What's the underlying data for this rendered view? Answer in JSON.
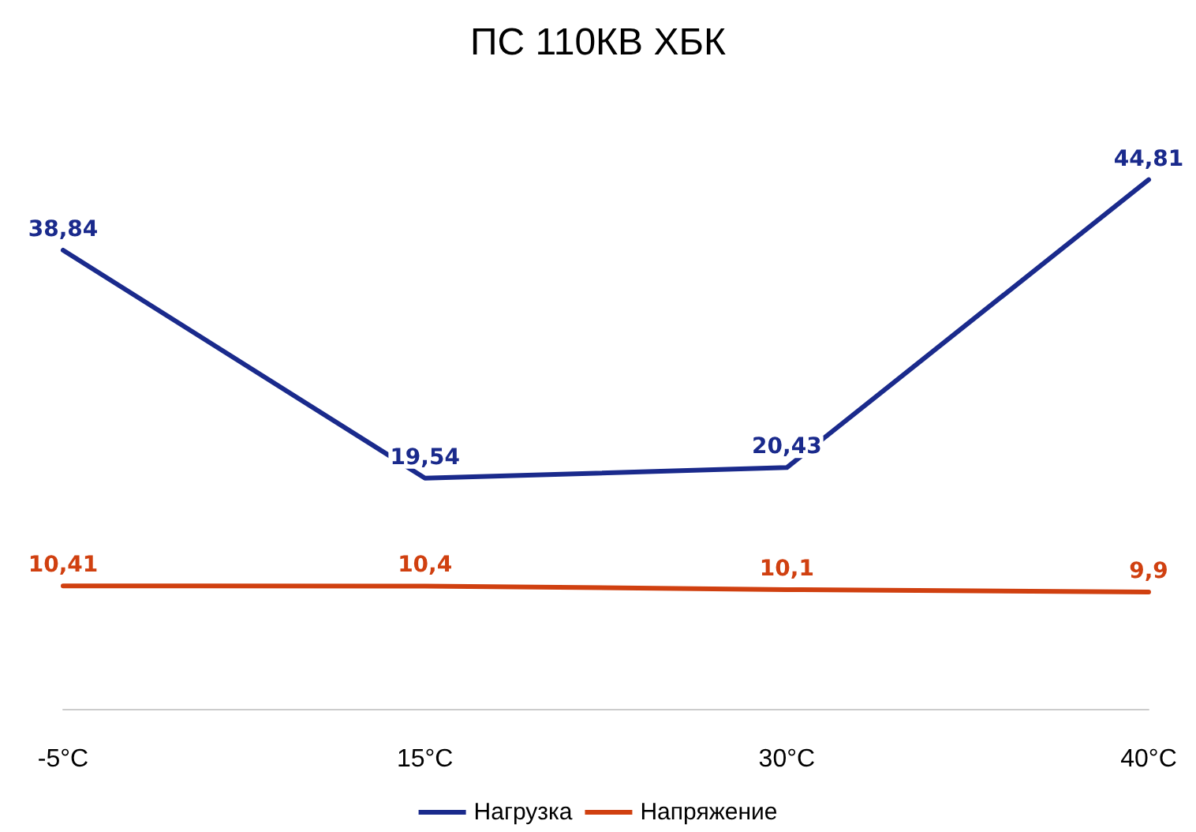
{
  "chart_data": {
    "type": "line",
    "title": "ПС 110КВ ХБК",
    "categories": [
      "-5°C",
      "15°C",
      "30°C",
      "40°C"
    ],
    "series": [
      {
        "name": "Нагрузка",
        "color": "#1a2a8c",
        "values": [
          38.84,
          19.54,
          20.43,
          44.81
        ],
        "value_labels": [
          "38,84",
          "19,54",
          "20,43",
          "44,81"
        ]
      },
      {
        "name": "Напряжение",
        "color": "#d04010",
        "values": [
          10.41,
          10.4,
          10.1,
          9.9
        ],
        "value_labels": [
          "10,41",
          "10,4",
          "10,1",
          "9,9"
        ]
      }
    ],
    "grid": false,
    "legend": "bottom",
    "marker": "none",
    "line_style": "solid",
    "tick_labels": "x"
  }
}
